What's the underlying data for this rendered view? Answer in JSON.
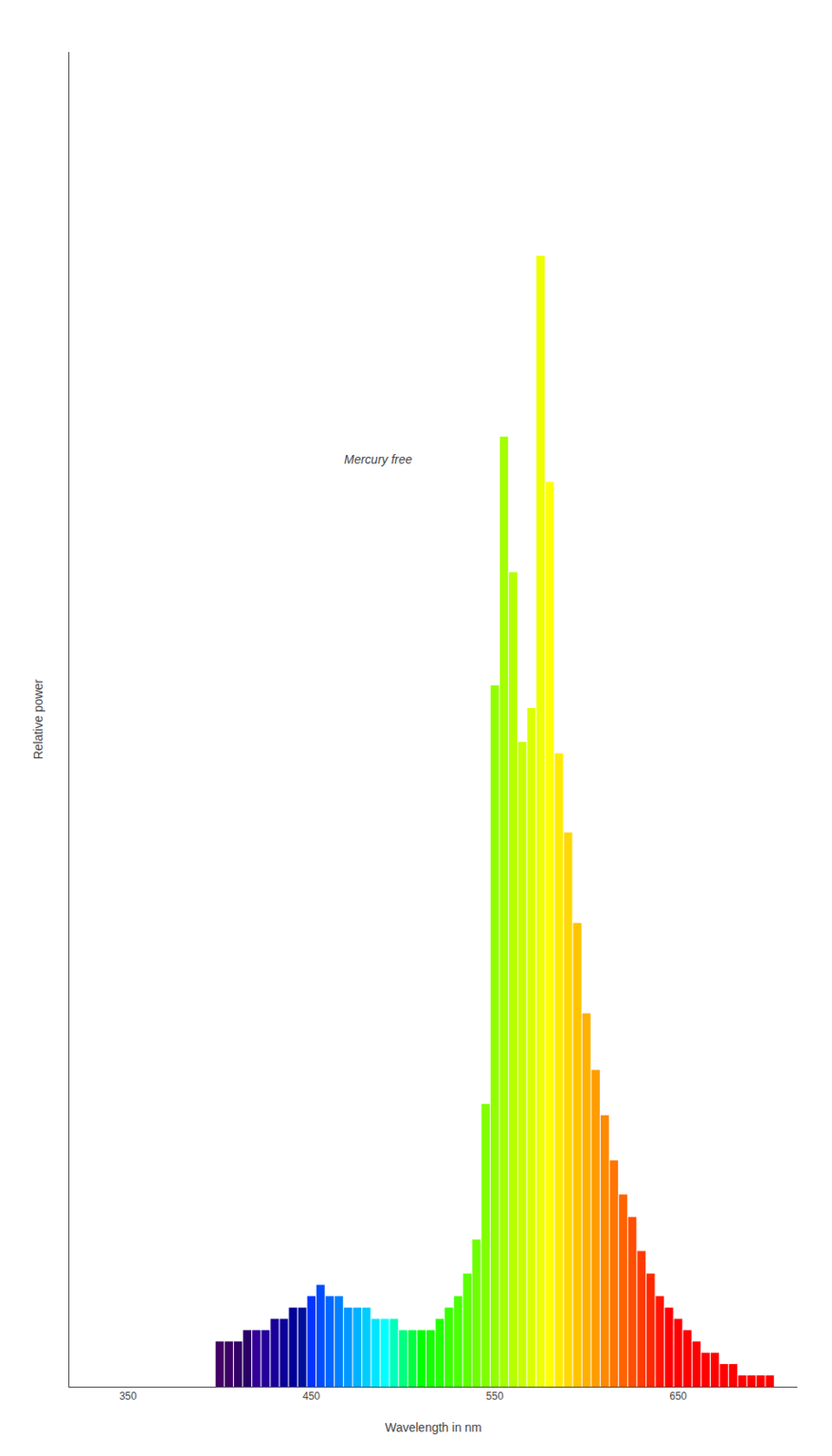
{
  "chart_data": {
    "type": "bar",
    "x": [
      400,
      405,
      410,
      415,
      420,
      425,
      430,
      435,
      440,
      445,
      450,
      455,
      460,
      465,
      470,
      475,
      480,
      485,
      490,
      495,
      500,
      505,
      510,
      515,
      520,
      525,
      530,
      535,
      540,
      545,
      550,
      555,
      560,
      565,
      570,
      575,
      580,
      585,
      590,
      595,
      600,
      605,
      610,
      615,
      620,
      625,
      630,
      635,
      640,
      645,
      650,
      655,
      660,
      665,
      670,
      675,
      680,
      685,
      690,
      695,
      700
    ],
    "values": [
      0.04,
      0.04,
      0.04,
      0.05,
      0.05,
      0.05,
      0.06,
      0.06,
      0.07,
      0.07,
      0.08,
      0.09,
      0.08,
      0.08,
      0.07,
      0.07,
      0.07,
      0.06,
      0.06,
      0.06,
      0.05,
      0.05,
      0.05,
      0.05,
      0.06,
      0.07,
      0.08,
      0.1,
      0.13,
      0.25,
      0.62,
      0.84,
      0.72,
      0.57,
      0.6,
      1.0,
      0.8,
      0.56,
      0.49,
      0.41,
      0.33,
      0.28,
      0.24,
      0.2,
      0.17,
      0.15,
      0.12,
      0.1,
      0.08,
      0.07,
      0.06,
      0.05,
      0.04,
      0.03,
      0.03,
      0.02,
      0.02,
      0.01,
      0.01,
      0.01,
      0.01
    ],
    "colors": [
      "#440066",
      "#3c0066",
      "#330066",
      "#2b0066",
      "#330099",
      "#260099",
      "#1a0099",
      "#0d0099",
      "#000099",
      "#000f99",
      "#0033ff",
      "#004cff",
      "#0066ff",
      "#0080ff",
      "#0099ff",
      "#00b2ff",
      "#00ccff",
      "#00e6ff",
      "#00ffff",
      "#00ffbf",
      "#00ff80",
      "#00ff40",
      "#00ff00",
      "#12ff00",
      "#24ff00",
      "#37ff00",
      "#49ff00",
      "#5bff00",
      "#6dff00",
      "#80ff00",
      "#92ff00",
      "#a4ff00",
      "#b6ff00",
      "#c8ff00",
      "#dbff00",
      "#edff00",
      "#ffff00",
      "#ffeb00",
      "#ffd800",
      "#ffc400",
      "#ffb100",
      "#ff9d00",
      "#ff8900",
      "#ff7600",
      "#ff6200",
      "#ff4e00",
      "#ff3b00",
      "#ff2700",
      "#ff1400",
      "#ff0000",
      "#ff0000",
      "#ff0000",
      "#ff0000",
      "#ff0000",
      "#ff0000",
      "#ff0000",
      "#ff0000",
      "#ff0000",
      "#ff0000",
      "#ff0000",
      "#ff0000"
    ],
    "x_label": "Wavelength in nm",
    "y_label": "Relative power",
    "xlim": [
      318,
      715
    ],
    "xticks": [
      350,
      450,
      550,
      650
    ],
    "ylim": [
      0,
      1.18
    ],
    "yticks": [],
    "tick_labels": "x",
    "grid": false,
    "annotations": [
      {
        "text": "Mercury free",
        "x": 467,
        "y": 0.82
      }
    ]
  }
}
